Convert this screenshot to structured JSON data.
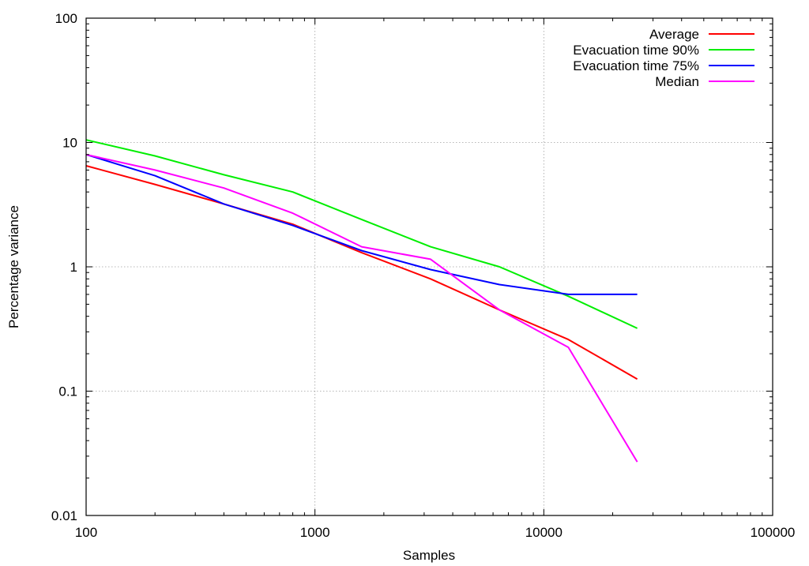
{
  "chart_data": {
    "type": "line",
    "xlabel": "Samples",
    "ylabel": "Percentage variance",
    "x_scale": "log",
    "y_scale": "log",
    "xlim": [
      100,
      100000
    ],
    "ylim": [
      0.01,
      100
    ],
    "x_ticks": [
      {
        "value": 100,
        "label": "100"
      },
      {
        "value": 1000,
        "label": "1000"
      },
      {
        "value": 10000,
        "label": "10000"
      },
      {
        "value": 100000,
        "label": "100000"
      }
    ],
    "y_ticks": [
      {
        "value": 0.01,
        "label": "0.01"
      },
      {
        "value": 0.1,
        "label": "0.1"
      },
      {
        "value": 1,
        "label": "1"
      },
      {
        "value": 10,
        "label": "10"
      },
      {
        "value": 100,
        "label": "100"
      }
    ],
    "grid": true,
    "legend_position": "top-right",
    "series": [
      {
        "name": "Average",
        "color": "#ff0000",
        "x": [
          100,
          200,
          400,
          800,
          1600,
          3200,
          6400,
          12800,
          25600
        ],
        "y": [
          6.5,
          4.6,
          3.2,
          2.2,
          1.3,
          0.8,
          0.45,
          0.26,
          0.125
        ]
      },
      {
        "name": "Evacuation time 90%",
        "color": "#00ee00",
        "x": [
          100,
          200,
          400,
          800,
          1600,
          3200,
          6400,
          12800,
          25600
        ],
        "y": [
          10.5,
          7.8,
          5.5,
          4.0,
          2.4,
          1.45,
          1.0,
          0.58,
          0.32
        ]
      },
      {
        "name": "Evacuation time 75%",
        "color": "#0000ff",
        "x": [
          100,
          200,
          400,
          800,
          1600,
          3200,
          6400,
          12800,
          25600
        ],
        "y": [
          8.0,
          5.4,
          3.2,
          2.15,
          1.35,
          0.95,
          0.72,
          0.6,
          0.6
        ]
      },
      {
        "name": "Median",
        "color": "#ff00ff",
        "x": [
          100,
          200,
          400,
          800,
          1600,
          3200,
          6400,
          12800,
          25600
        ],
        "y": [
          8.0,
          6.0,
          4.3,
          2.7,
          1.45,
          1.15,
          0.45,
          0.225,
          0.027
        ]
      }
    ]
  }
}
